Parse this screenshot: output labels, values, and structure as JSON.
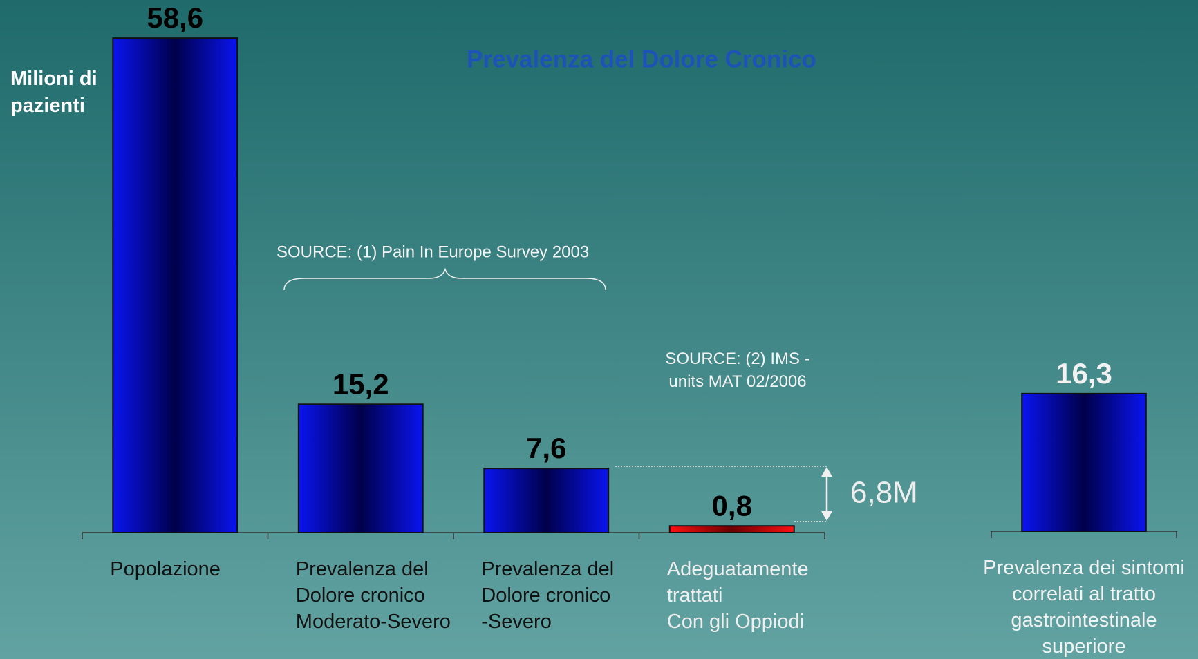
{
  "title": "Prevalenza del Dolore Cronico",
  "y_label": "Milioni di pazienti",
  "annotations": [
    "SOURCE: (1) Pain In Europe Survey 2003",
    "SOURCE: (2) IMS  -\nunits MAT 02/2006",
    "6,8M"
  ],
  "chart_data": [
    {
      "type": "bar",
      "categories": [
        "Popolazione",
        "Prevalenza del\nDolore cronico\nModerato-Severo",
        "Prevalenza del\nDolore cronico\n-Severo",
        "Adeguatamente trattati\nCon gli Oppiodi"
      ],
      "values": [
        58.6,
        15.2,
        7.6,
        0.8
      ],
      "value_labels": [
        "58,6",
        "15,2",
        "7,6",
        "0,8"
      ],
      "colors": [
        "blue",
        "blue",
        "blue",
        "red"
      ],
      "category_colors": [
        "#111111",
        "#111111",
        "#111111",
        "#eeeeee"
      ],
      "value_label_color": "#000000",
      "label_align": "left",
      "ylim": [
        0,
        60
      ]
    },
    {
      "type": "bar",
      "categories": [
        "Prevalenza dei sintomi\ncorrelati al tratto\ngastrointestinale\nsuperiore"
      ],
      "values": [
        16.3
      ],
      "value_labels": [
        "16,3"
      ],
      "colors": [
        "blue"
      ],
      "category_colors": [
        "#f2f2f2"
      ],
      "value_label_color": "#f2f2f2",
      "label_align": "center",
      "ylim": [
        0,
        60
      ]
    }
  ]
}
